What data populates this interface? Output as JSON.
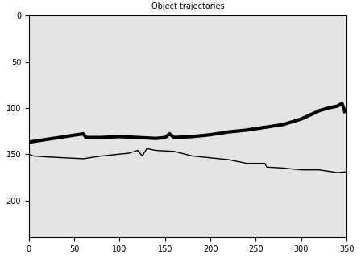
{
  "chart_data": {
    "type": "line",
    "title": "Object trajectories",
    "series": [
      {
        "color": "#000000",
        "line_style": "solid",
        "x": [
          0,
          20,
          40,
          60,
          63,
          80,
          100,
          120,
          140,
          150,
          155,
          160,
          180,
          200,
          220,
          240,
          260,
          280,
          300,
          320,
          330,
          340,
          345,
          348
        ],
        "values": [
          137,
          134,
          131,
          128,
          132,
          132,
          131,
          132,
          133,
          132,
          128,
          132,
          131,
          129,
          126,
          124,
          121,
          118,
          112,
          103,
          100,
          98,
          95,
          104
        ]
      },
      {
        "color": "#000000",
        "line_style": "solid",
        "x": [
          0,
          5,
          20,
          40,
          60,
          80,
          100,
          110,
          120,
          125,
          130,
          140,
          160,
          180,
          200,
          220,
          240,
          260,
          262,
          280,
          300,
          320,
          340,
          350
        ],
        "values": [
          150,
          152,
          153,
          154,
          155,
          152,
          150,
          149,
          146,
          152,
          144,
          146,
          147,
          152,
          154,
          156,
          160,
          160,
          164,
          165,
          167,
          167,
          170,
          169
        ]
      }
    ],
    "xlim": [
      0,
      350
    ],
    "xticks": [
      0,
      50,
      100,
      150,
      200,
      250,
      300,
      350
    ],
    "ylim": [
      240,
      0
    ],
    "yticks": [
      0,
      50,
      100,
      150,
      200
    ],
    "grid": false
  }
}
